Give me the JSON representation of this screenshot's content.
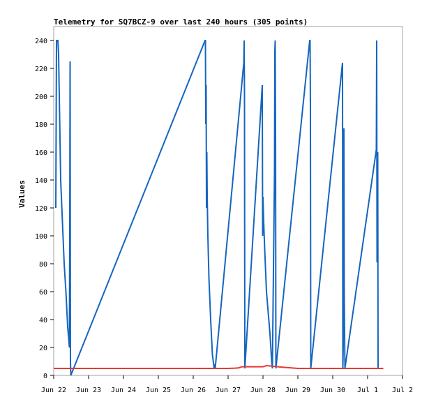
{
  "chart_data": {
    "type": "line",
    "title": "Telemetry for SQ7BCZ-9 over last 240 hours (305 points)",
    "ylabel": "Values",
    "xlabel": "",
    "ylim": [
      0,
      250
    ],
    "yticks": [
      0,
      20,
      40,
      60,
      80,
      100,
      120,
      140,
      160,
      180,
      200,
      220,
      240
    ],
    "xlim": [
      0,
      10
    ],
    "xticks": [
      {
        "pos": 0,
        "label": "Jun 22"
      },
      {
        "pos": 1,
        "label": "Jun 23"
      },
      {
        "pos": 2,
        "label": "Jun 24"
      },
      {
        "pos": 3,
        "label": "Jun 25"
      },
      {
        "pos": 4,
        "label": "Jun 26"
      },
      {
        "pos": 5,
        "label": "Jun 27"
      },
      {
        "pos": 6,
        "label": "Jun 28"
      },
      {
        "pos": 7,
        "label": "Jun 29"
      },
      {
        "pos": 8,
        "label": "Jun 30"
      },
      {
        "pos": 9,
        "label": "Jul 1"
      },
      {
        "pos": 10,
        "label": "Jul 2"
      }
    ],
    "grid": false,
    "series": [
      {
        "color": "#1565c0",
        "x": [
          0.06,
          0.08,
          0.1,
          0.12,
          0.14,
          0.16,
          0.18,
          0.2,
          0.25,
          0.3,
          0.35,
          0.4,
          0.45,
          0.46,
          0.47,
          0.48,
          0.49,
          4.34,
          4.35,
          4.36,
          4.37,
          4.38,
          4.39,
          4.4,
          4.42,
          4.45,
          4.5,
          4.55,
          4.6,
          4.62,
          4.63,
          5.45,
          5.46,
          5.47,
          5.48,
          5.98,
          5.99,
          6.0,
          6.02,
          6.05,
          6.1,
          6.2,
          6.25,
          6.27,
          6.33,
          6.34,
          6.35,
          6.36,
          6.37,
          7.34,
          7.35,
          7.36,
          7.37,
          8.28,
          8.29,
          8.3,
          8.31,
          8.32,
          8.33,
          8.34,
          8.35,
          9.24,
          9.25,
          9.26,
          9.27,
          9.28,
          9.29,
          9.3
        ],
        "y": [
          120,
          240,
          240,
          240,
          230,
          200,
          170,
          140,
          110,
          80,
          60,
          35,
          20,
          110,
          225,
          10,
          0,
          240,
          240,
          180,
          208,
          120,
          160,
          130,
          100,
          70,
          40,
          15,
          5,
          8,
          5,
          224,
          240,
          200,
          5,
          208,
          100,
          128,
          110,
          90,
          60,
          30,
          10,
          5,
          145,
          232,
          240,
          180,
          5,
          240,
          240,
          193,
          5,
          224,
          5,
          20,
          175,
          177,
          60,
          30,
          5,
          160,
          162,
          240,
          81,
          158,
          160,
          5
        ]
      },
      {
        "color": "#e53935",
        "x": [
          0.0,
          2.0,
          4.0,
          5.0,
          5.2,
          5.3,
          5.4,
          6.0,
          6.1,
          6.5,
          7.0,
          8.0,
          9.0,
          9.45
        ],
        "y": [
          5,
          5,
          5,
          5,
          5.2,
          5.4,
          6.2,
          6.2,
          7.0,
          6.0,
          5.0,
          5.0,
          5.0,
          5.0
        ]
      }
    ]
  }
}
